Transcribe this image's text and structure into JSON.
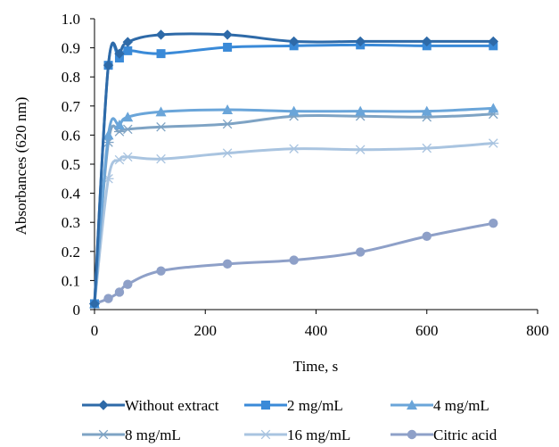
{
  "chart_data": {
    "type": "line",
    "title": "",
    "xlabel": "Time, s",
    "ylabel": "Absorbances (620 nm)",
    "xlim": [
      0,
      800
    ],
    "ylim": [
      0,
      1.0
    ],
    "x_ticks": [
      "0",
      "200",
      "400",
      "600",
      "800"
    ],
    "y_ticks": [
      "0",
      "0.1",
      "0.2",
      "0.3",
      "0.4",
      "0.5",
      "0.6",
      "0.7",
      "0.8",
      "0.9",
      "1.0"
    ],
    "grid": false,
    "legend_position": "bottom",
    "x": [
      0,
      25,
      45,
      60,
      120,
      240,
      360,
      480,
      600,
      720
    ],
    "series": [
      {
        "name": "Without extract",
        "marker": "diamond",
        "color": "#2e6aa8",
        "values": [
          0.02,
          0.84,
          0.88,
          0.92,
          0.945,
          0.945,
          0.922,
          0.922,
          0.922,
          0.922
        ]
      },
      {
        "name": "2 mg/mL",
        "marker": "square",
        "color": "#3a8ad8",
        "values": [
          0.02,
          0.84,
          0.865,
          0.89,
          0.88,
          0.902,
          0.907,
          0.91,
          0.907,
          0.907
        ]
      },
      {
        "name": "4 mg/mL",
        "marker": "triangle",
        "color": "#6aa5d9",
        "values": [
          0.02,
          0.6,
          0.635,
          0.662,
          0.68,
          0.687,
          0.682,
          0.682,
          0.682,
          0.692
        ]
      },
      {
        "name": "8 mg/mL",
        "marker": "star",
        "color": "#7ea3c4",
        "values": [
          0.02,
          0.575,
          0.612,
          0.62,
          0.628,
          0.638,
          0.665,
          0.665,
          0.662,
          0.672
        ]
      },
      {
        "name": "16 mg/mL",
        "marker": "star",
        "color": "#a9c4e0",
        "values": [
          0.02,
          0.45,
          0.515,
          0.525,
          0.518,
          0.538,
          0.553,
          0.55,
          0.555,
          0.572
        ]
      },
      {
        "name": "Citric acid",
        "marker": "circle",
        "color": "#8ea0c8",
        "values": [
          0.02,
          0.038,
          0.06,
          0.087,
          0.133,
          0.157,
          0.17,
          0.198,
          0.252,
          0.297
        ]
      }
    ]
  }
}
